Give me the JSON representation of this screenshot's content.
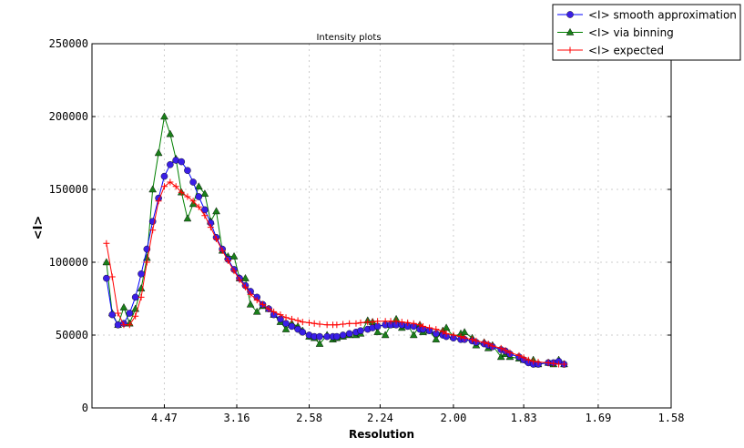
{
  "chart_data": {
    "type": "line",
    "title": "Intensity plots",
    "xlabel": "Resolution",
    "ylabel": "<I>",
    "x_scale": "1/d^2 (reciprocal squared resolution)",
    "xlim": [
      null,
      1.58
    ],
    "ylim": [
      0,
      250000
    ],
    "x_tick_labels": [
      "4.47",
      "3.16",
      "2.58",
      "2.24",
      "2.00",
      "1.83",
      "1.69",
      "1.58"
    ],
    "y_tick_labels": [
      "0",
      "50000",
      "100000",
      "150000",
      "200000",
      "250000"
    ],
    "grid": true,
    "legend_position": "top-right",
    "x": [
      10.0,
      8.45,
      7.45,
      6.74,
      6.2,
      5.77,
      5.42,
      5.13,
      4.88,
      4.66,
      4.47,
      4.3,
      4.15,
      4.02,
      3.89,
      3.78,
      3.68,
      3.58,
      3.49,
      3.41,
      3.33,
      3.26,
      3.19,
      3.13,
      3.07,
      3.02,
      2.96,
      2.91,
      2.86,
      2.82,
      2.77,
      2.73,
      2.69,
      2.65,
      2.62,
      2.58,
      2.55,
      2.52,
      2.48,
      2.45,
      2.43,
      2.4,
      2.37,
      2.34,
      2.32,
      2.29,
      2.27,
      2.25,
      2.22,
      2.2,
      2.18,
      2.16,
      2.14,
      2.12,
      2.1,
      2.09,
      2.07,
      2.05,
      2.03,
      2.02,
      2.0,
      1.98,
      1.97,
      1.95,
      1.94,
      1.92,
      1.91,
      1.9,
      1.88,
      1.87,
      1.86,
      1.84,
      1.83,
      1.82,
      1.81,
      1.8,
      1.78,
      1.77,
      1.76,
      1.75
    ],
    "series": [
      {
        "name": "<I> smooth approximation",
        "color": "#0000ff",
        "marker": "circle",
        "marker_color": "#3a1ee6",
        "values": [
          89000,
          64000,
          57000,
          58000,
          65000,
          76000,
          92000,
          109000,
          128000,
          144000,
          159000,
          167000,
          170000,
          169000,
          163000,
          155000,
          145000,
          136000,
          127000,
          117000,
          109000,
          102000,
          95000,
          89000,
          84000,
          80000,
          76000,
          71000,
          68000,
          64000,
          61000,
          58000,
          56000,
          54000,
          52000,
          50000,
          49000,
          49000,
          49000,
          49000,
          49000,
          50000,
          51000,
          52000,
          53000,
          54000,
          55000,
          56000,
          57000,
          57000,
          57000,
          57000,
          56000,
          56000,
          54000,
          54000,
          53000,
          51000,
          50000,
          49000,
          48000,
          47000,
          47000,
          46000,
          45000,
          44000,
          43000,
          42000,
          40000,
          39000,
          37000,
          35000,
          33000,
          31000,
          30000,
          30000,
          31000,
          31000,
          32000,
          30000
        ]
      },
      {
        "name": "<I> via binning",
        "color": "#008000",
        "marker": "triangle",
        "marker_color": "#1a7f1a",
        "values": [
          100000,
          65000,
          57000,
          69000,
          58000,
          68000,
          82000,
          103000,
          150000,
          175000,
          200000,
          188000,
          171000,
          148000,
          130000,
          140000,
          152000,
          147000,
          128000,
          135000,
          108000,
          104000,
          104000,
          89000,
          89000,
          71000,
          66000,
          70000,
          68000,
          64000,
          59000,
          54000,
          58000,
          56000,
          53000,
          49000,
          48000,
          44000,
          50000,
          47000,
          48000,
          49000,
          50000,
          50000,
          51000,
          60000,
          59000,
          52000,
          50000,
          57000,
          61000,
          55000,
          57000,
          50000,
          57000,
          52000,
          53000,
          47000,
          53000,
          55000,
          49000,
          51000,
          52000,
          48000,
          43000,
          45000,
          41000,
          43000,
          35000,
          37000,
          35000,
          34000,
          33000,
          32000,
          33000,
          30000,
          31000,
          30000,
          33000,
          30000
        ]
      },
      {
        "name": "<I> expected",
        "color": "#ff0000",
        "marker": "plus",
        "marker_color": "#ff0000",
        "values": [
          113000,
          90000,
          65000,
          57000,
          57000,
          63000,
          76000,
          100000,
          122000,
          142000,
          152000,
          155000,
          152000,
          148000,
          145000,
          142000,
          138000,
          132000,
          124000,
          116000,
          108000,
          101000,
          94000,
          88000,
          83000,
          78000,
          74000,
          71000,
          68000,
          66000,
          64000,
          62000,
          61000,
          60000,
          59000,
          58500,
          58000,
          57500,
          57000,
          57000,
          57000,
          57500,
          58000,
          58000,
          58500,
          59000,
          59000,
          59500,
          59500,
          59500,
          59500,
          59000,
          58500,
          58000,
          57000,
          56000,
          55000,
          54000,
          52500,
          51000,
          50000,
          49000,
          48000,
          47000,
          46000,
          45000,
          44000,
          42500,
          41000,
          39500,
          38000,
          36000,
          34500,
          33000,
          32000,
          31500,
          31000,
          30500,
          30000,
          30000
        ]
      }
    ]
  }
}
